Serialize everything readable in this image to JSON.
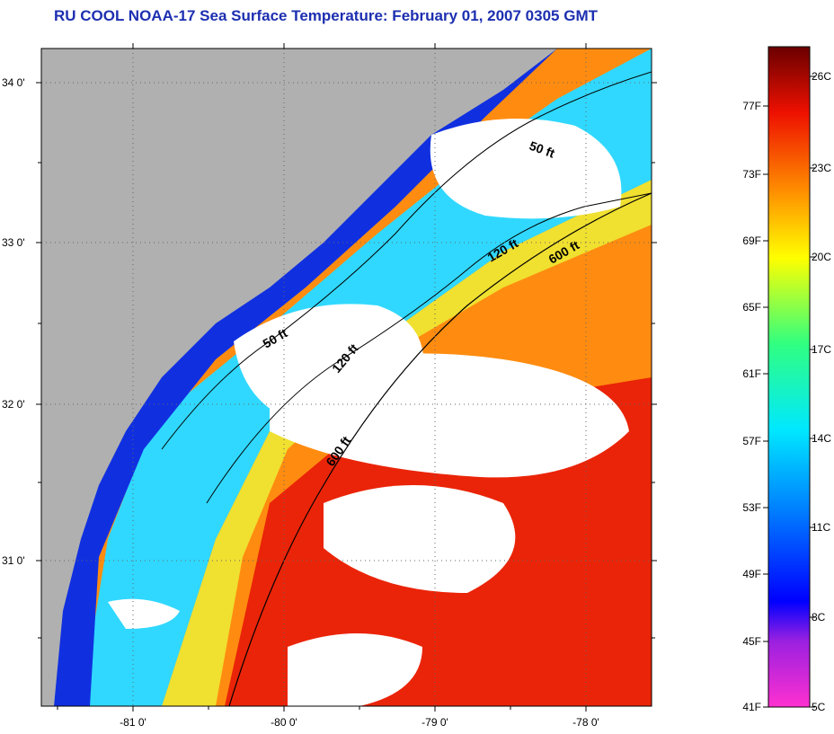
{
  "title": "RU COOL  NOAA-17  Sea Surface Temperature:  February 01, 2007 0305 GMT",
  "map": {
    "lat_ticks": [
      "34 0'",
      "33 0'",
      "32 0'",
      "31 0'"
    ],
    "lon_ticks": [
      "-81 0'",
      "-80 0'",
      "-79 0'",
      "-78 0'"
    ],
    "contours": [
      "50 ft",
      "50 ft",
      "120 ft",
      "120 ft",
      "600 ft",
      "600 ft"
    ]
  },
  "colorbar": {
    "fahrenheit": [
      "77F",
      "73F",
      "69F",
      "65F",
      "61F",
      "57F",
      "53F",
      "49F",
      "45F",
      "41F"
    ],
    "celsius": [
      "26C",
      "23C",
      "20C",
      "17C",
      "14C",
      "11C",
      "8C",
      "5C"
    ]
  },
  "colors": {
    "title": "#1d2fb0",
    "land": "#b0b0b0",
    "cloud": "#ffffff",
    "cold": "#1030e0",
    "cool": "#30d8ff",
    "mild": "#f0e030",
    "warm": "#ff8c10",
    "hot": "#e81808"
  }
}
